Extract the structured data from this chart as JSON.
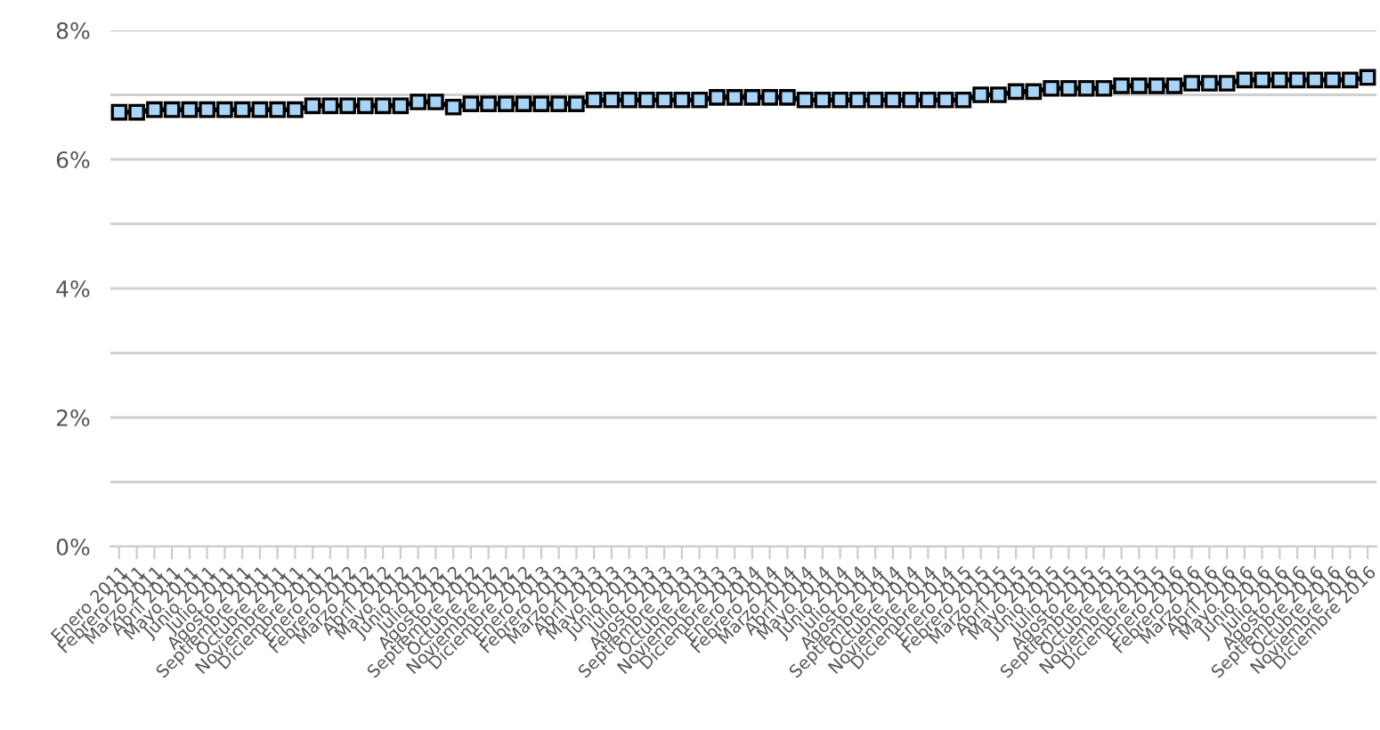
{
  "chart_data": {
    "type": "line",
    "categories": [
      "Enero 2011",
      "Febrero 2011",
      "Marzo 2011",
      "Abril 2011",
      "Mayo 2011",
      "Junio 2011",
      "Julio 2011",
      "Agosto 2011",
      "Septiembre 2011",
      "Octubre 2011",
      "Noviembre 2011",
      "Diciembre 2011",
      "Enero 2012",
      "Febrero 2012",
      "Marzo 2012",
      "Abril 2012",
      "Mayo 2012",
      "Junio 2012",
      "Julio 2012",
      "Agosto 2012",
      "Septiembre 2012",
      "Octubre 2012",
      "Noviembre 2012",
      "Diciembre 2012",
      "Enero 2013",
      "Febrero 2013",
      "Marzo 2013",
      "Abril 2013",
      "Mayo 2013",
      "Junio 2013",
      "Julio 2013",
      "Agosto 2013",
      "Septiembre 2013",
      "Octubre 2013",
      "Noviembre 2013",
      "Diciembre 2013",
      "Enero 2014",
      "Febrero 2014",
      "Marzo 2014",
      "Abril 2014",
      "Mayo 2014",
      "Junio 2014",
      "Julio 2014",
      "Agosto 2014",
      "Septiembre 2014",
      "Octubre 2014",
      "Noviembre 2014",
      "Diciembre 2014",
      "Enero 2015",
      "Febrero 2015",
      "Marzo 2015",
      "Abril 2015",
      "Mayo 2015",
      "Junio 2015",
      "Julio 2015",
      "Agosto 2015",
      "Septiembre 2015",
      "Octubre 2015",
      "Noviembre 2015",
      "Diciembre 2015",
      "Enero 2016",
      "Febrero 2016",
      "Marzo 2016",
      "Abril 2016",
      "Mayo 2016",
      "Junio 2016",
      "Julio 2016",
      "Agosto 2016",
      "Septiembre 2016",
      "Octubre 2016",
      "Noviembre 2016",
      "Diciembre 2016"
    ],
    "series": [
      {
        "color": "#000000",
        "values": [
          6.73,
          6.73,
          6.77,
          6.77,
          6.77,
          6.77,
          6.77,
          6.77,
          6.77,
          6.77,
          6.77,
          6.83,
          6.83,
          6.83,
          6.83,
          6.83,
          6.83,
          6.89,
          6.89,
          6.81,
          6.86,
          6.86,
          6.86,
          6.86,
          6.86,
          6.86,
          6.86,
          6.92,
          6.92,
          6.92,
          6.92,
          6.92,
          6.92,
          6.92,
          6.96,
          6.96,
          6.96,
          6.96,
          6.96,
          6.92,
          6.92,
          6.92,
          6.92,
          6.92,
          6.92,
          6.92,
          6.92,
          6.92,
          6.92,
          7.0,
          7.0,
          7.05,
          7.05,
          7.1,
          7.1,
          7.1,
          7.1,
          7.14,
          7.14,
          7.14,
          7.14,
          7.18,
          7.18,
          7.18,
          7.23,
          7.23,
          7.23,
          7.23,
          7.23,
          7.23,
          7.23,
          7.27
        ]
      }
    ],
    "ylim": [
      0,
      8
    ],
    "yticks": [
      {
        "value": 0,
        "label": "0%"
      },
      {
        "value": 1,
        "label": null
      },
      {
        "value": 2,
        "label": "2%"
      },
      {
        "value": 3,
        "label": null
      },
      {
        "value": 4,
        "label": "4%"
      },
      {
        "value": 5,
        "label": null
      },
      {
        "value": 6,
        "label": "6%"
      },
      {
        "value": 7,
        "label": null
      },
      {
        "value": 8,
        "label": "8%"
      }
    ],
    "grid": "y",
    "legend": false,
    "marker": "square",
    "line_style": "solid"
  }
}
